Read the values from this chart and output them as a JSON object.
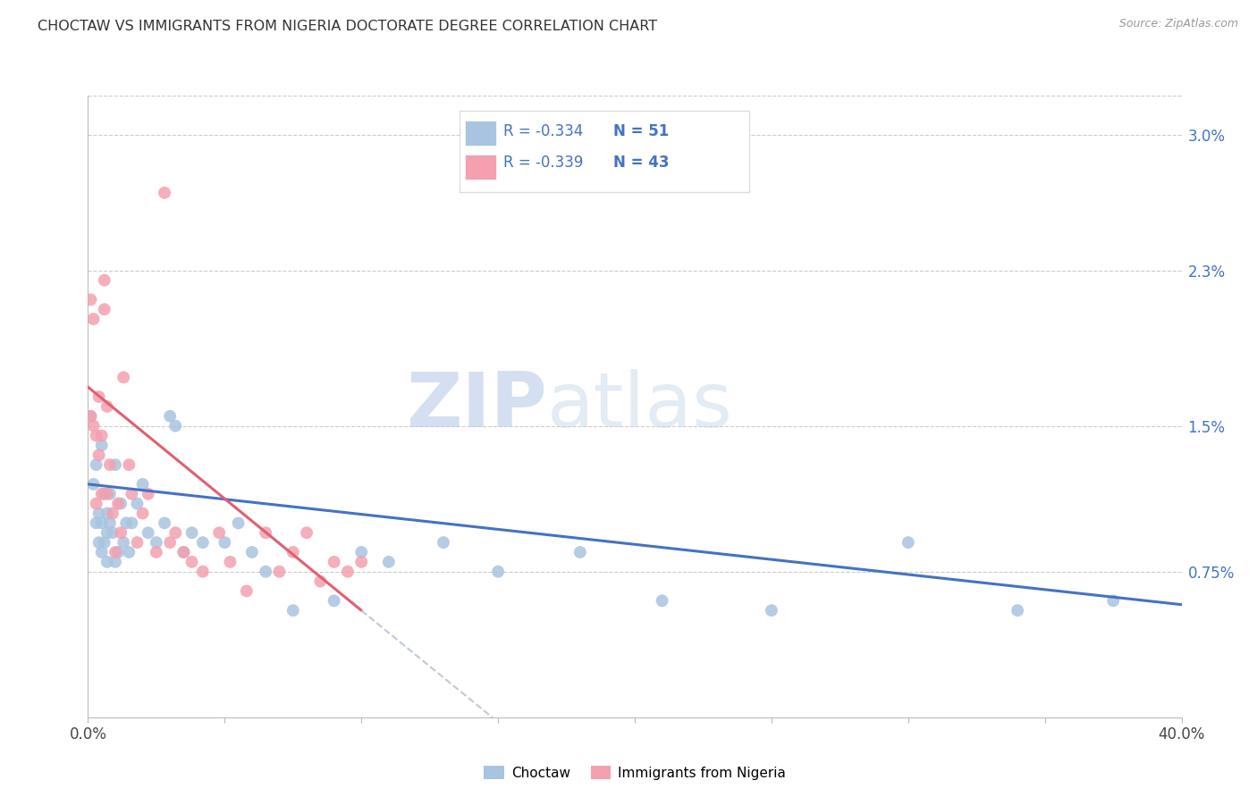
{
  "title": "CHOCTAW VS IMMIGRANTS FROM NIGERIA DOCTORATE DEGREE CORRELATION CHART",
  "source": "Source: ZipAtlas.com",
  "ylabel": "Doctorate Degree",
  "ylabel_ticks": [
    "0.75%",
    "1.5%",
    "2.3%",
    "3.0%"
  ],
  "ylabel_values": [
    0.0075,
    0.015,
    0.023,
    0.03
  ],
  "xmin": 0.0,
  "xmax": 0.4,
  "ymin": 0.0,
  "ymax": 0.032,
  "legend_r_choctaw": "-0.334",
  "legend_n_choctaw": "51",
  "legend_r_nigeria": "-0.339",
  "legend_n_nigeria": "43",
  "choctaw_color": "#a8c4e0",
  "nigeria_color": "#f4a0b0",
  "choctaw_line_color": "#4472c4",
  "nigeria_line_color": "#e06070",
  "nigeria_line_ext_color": "#c0c8d8",
  "watermark_zip": "ZIP",
  "watermark_atlas": "atlas",
  "choctaw_x": [
    0.001,
    0.002,
    0.003,
    0.003,
    0.004,
    0.004,
    0.005,
    0.005,
    0.005,
    0.006,
    0.006,
    0.007,
    0.007,
    0.007,
    0.008,
    0.008,
    0.009,
    0.01,
    0.01,
    0.011,
    0.012,
    0.013,
    0.014,
    0.015,
    0.016,
    0.018,
    0.02,
    0.022,
    0.025,
    0.028,
    0.03,
    0.032,
    0.035,
    0.038,
    0.042,
    0.05,
    0.055,
    0.06,
    0.065,
    0.075,
    0.09,
    0.1,
    0.11,
    0.13,
    0.15,
    0.18,
    0.21,
    0.25,
    0.3,
    0.34,
    0.375
  ],
  "choctaw_y": [
    0.0155,
    0.012,
    0.013,
    0.01,
    0.009,
    0.0105,
    0.014,
    0.0085,
    0.01,
    0.0115,
    0.009,
    0.0095,
    0.0105,
    0.008,
    0.01,
    0.0115,
    0.0095,
    0.013,
    0.008,
    0.0085,
    0.011,
    0.009,
    0.01,
    0.0085,
    0.01,
    0.011,
    0.012,
    0.0095,
    0.009,
    0.01,
    0.0155,
    0.015,
    0.0085,
    0.0095,
    0.009,
    0.009,
    0.01,
    0.0085,
    0.0075,
    0.0055,
    0.006,
    0.0085,
    0.008,
    0.009,
    0.0075,
    0.0085,
    0.006,
    0.0055,
    0.009,
    0.0055,
    0.006
  ],
  "nigeria_x": [
    0.001,
    0.001,
    0.002,
    0.002,
    0.003,
    0.003,
    0.004,
    0.004,
    0.005,
    0.005,
    0.006,
    0.006,
    0.007,
    0.007,
    0.008,
    0.009,
    0.01,
    0.011,
    0.012,
    0.013,
    0.015,
    0.016,
    0.018,
    0.02,
    0.022,
    0.025,
    0.028,
    0.03,
    0.032,
    0.035,
    0.038,
    0.042,
    0.048,
    0.052,
    0.058,
    0.065,
    0.07,
    0.075,
    0.08,
    0.085,
    0.09,
    0.095,
    0.1
  ],
  "nigeria_y": [
    0.0155,
    0.0215,
    0.0205,
    0.015,
    0.0145,
    0.011,
    0.0165,
    0.0135,
    0.0145,
    0.0115,
    0.0225,
    0.021,
    0.016,
    0.0115,
    0.013,
    0.0105,
    0.0085,
    0.011,
    0.0095,
    0.0175,
    0.013,
    0.0115,
    0.009,
    0.0105,
    0.0115,
    0.0085,
    0.027,
    0.009,
    0.0095,
    0.0085,
    0.008,
    0.0075,
    0.0095,
    0.008,
    0.0065,
    0.0095,
    0.0075,
    0.0085,
    0.0095,
    0.007,
    0.008,
    0.0075,
    0.008
  ]
}
